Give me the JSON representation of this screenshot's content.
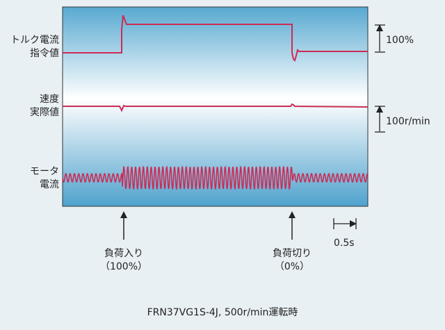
{
  "labels": {
    "torque_line1": "トルク電流",
    "torque_line2": "指令値",
    "speed_line1": "速度",
    "speed_line2": "実際値",
    "motor_line1": "モータ",
    "motor_line2": "電流",
    "scale_torque": "100%",
    "scale_speed": "100r/min",
    "scale_time": "0.5s",
    "load_on_line1": "負荷入り",
    "load_on_line2": "（100%）",
    "load_off_line1": "負荷切り",
    "load_off_line2": "（0%）",
    "caption": "FRN37VG1S-4J, 500r/min運転時"
  },
  "colors": {
    "trace": "#cc2b55",
    "panel_top": "#58a9d1",
    "panel_mid": "#ffffff",
    "panel_bottom": "#4fa2cd",
    "ink": "#222222"
  }
}
